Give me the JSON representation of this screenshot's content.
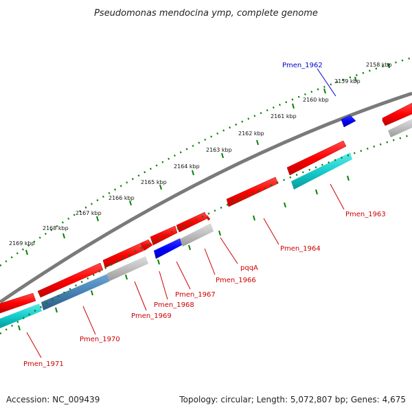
{
  "title": "Pseudomonas mendocina ymp, complete genome",
  "footer": {
    "accession": "Accession: NC_009439",
    "summary": "Topology: circular; Length: 5,072,807 bp; Genes: 4,675"
  },
  "ruler": {
    "labels": [
      "2158 kbp",
      "2159 kbp",
      "2160 kbp",
      "2161 kbp",
      "2162 kbp",
      "2163 kbp",
      "2164 kbp",
      "2165 kbp",
      "2166 kbp",
      "2167 kbp",
      "2168 kbp",
      "2169 kbp"
    ]
  },
  "colors": {
    "backbone": "#808080",
    "forward_cds": "#ff0000",
    "reverse_cds": "#ff0000",
    "highlight_gene": "#0000ff",
    "other_feature_cyan": "#00c8c8",
    "other_feature_grey": "#b8b8b8",
    "other_feature_steel": "#4682b4",
    "ticks": "#008000",
    "label_red": "#cc0000",
    "label_blue": "#0000cc"
  },
  "genes": [
    {
      "name": "Pmen_1962",
      "color": "blue"
    },
    {
      "name": "Pmen_1963",
      "color": "red"
    },
    {
      "name": "Pmen_1964",
      "color": "red"
    },
    {
      "name": "pqqA",
      "color": "red"
    },
    {
      "name": "Pmen_1966",
      "color": "red"
    },
    {
      "name": "Pmen_1967",
      "color": "red"
    },
    {
      "name": "Pmen_1968",
      "color": "red"
    },
    {
      "name": "Pmen_1969",
      "color": "red"
    },
    {
      "name": "Pmen_1970",
      "color": "red"
    },
    {
      "name": "Pmen_1971",
      "color": "red"
    }
  ]
}
